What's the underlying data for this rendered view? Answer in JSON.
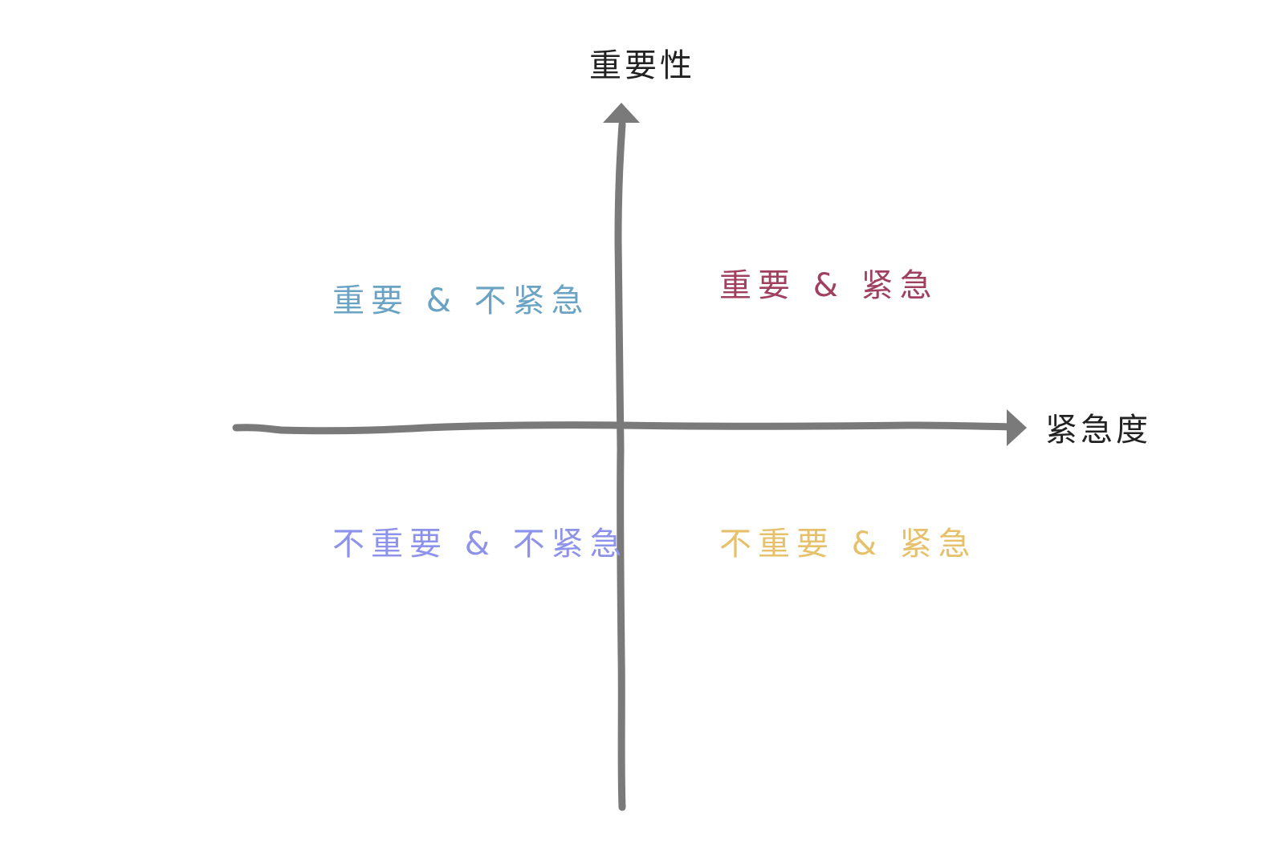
{
  "axes": {
    "vertical_label": "重要性",
    "horizontal_label": "紧急度",
    "axis_color": "#7a7a7a"
  },
  "quadrants": {
    "top_left": {
      "text": "重要 & 不紧急",
      "color": "#6aa3c4"
    },
    "top_right": {
      "text": "重要 & 紧急",
      "color": "#a0405f"
    },
    "bottom_left": {
      "text": "不重要 & 不紧急",
      "color": "#8d92ea"
    },
    "bottom_right": {
      "text": "不重要 & 紧急",
      "color": "#e6c06a"
    }
  }
}
